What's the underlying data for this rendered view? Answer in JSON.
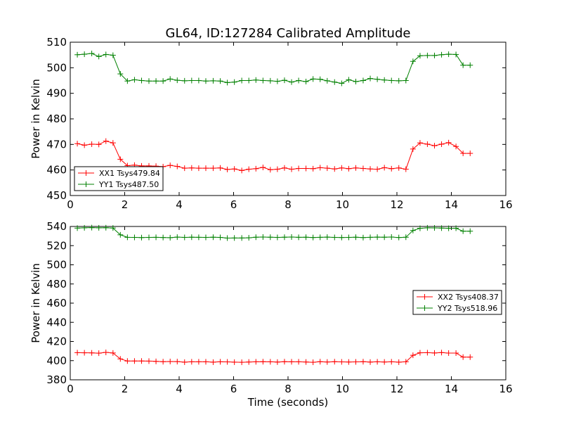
{
  "figure": {
    "title": "GL64, ID:127284 Calibrated Amplitude",
    "xlabel": "Time (seconds)"
  },
  "chart_data": [
    {
      "type": "line",
      "title": "GL64, ID:127284 Calibrated Amplitude",
      "xlabel": "",
      "ylabel": "Power in Kelvin",
      "xlim": [
        0,
        16
      ],
      "ylim": [
        450,
        510
      ],
      "xticks": [
        "0",
        "2",
        "4",
        "6",
        "8",
        "10",
        "12",
        "14",
        "16"
      ],
      "yticks": [
        "450",
        "460",
        "470",
        "480",
        "490",
        "500",
        "510"
      ],
      "legend_position": "lower-left",
      "grid": false,
      "x": [
        0.26,
        0.52,
        0.79,
        1.05,
        1.31,
        1.57,
        1.84,
        2.1,
        2.36,
        2.62,
        2.89,
        3.15,
        3.41,
        3.67,
        3.93,
        4.2,
        4.46,
        4.72,
        4.98,
        5.25,
        5.51,
        5.77,
        6.03,
        6.3,
        6.56,
        6.82,
        7.08,
        7.35,
        7.61,
        7.87,
        8.13,
        8.39,
        8.66,
        8.92,
        9.18,
        9.44,
        9.71,
        9.97,
        10.23,
        10.49,
        10.76,
        11.02,
        11.28,
        11.54,
        11.8,
        12.07,
        12.33,
        12.59,
        12.85,
        13.12,
        13.38,
        13.64,
        13.9,
        14.17,
        14.43,
        14.69
      ],
      "series": [
        {
          "name": "XX1 Tsys479.84",
          "color": "#ff0000",
          "values": [
            470.3,
            469.7,
            470.1,
            470.0,
            471.3,
            470.6,
            464.2,
            461.7,
            461.9,
            461.6,
            461.6,
            461.5,
            461.3,
            461.8,
            461.4,
            460.7,
            460.8,
            460.7,
            460.7,
            460.7,
            460.8,
            460.2,
            460.4,
            459.8,
            460.3,
            460.5,
            461.0,
            460.1,
            460.3,
            460.8,
            460.3,
            460.6,
            460.6,
            460.5,
            460.9,
            460.7,
            460.4,
            460.8,
            460.5,
            460.8,
            460.6,
            460.4,
            460.3,
            460.9,
            460.5,
            460.8,
            460.3,
            468.2,
            470.6,
            470.1,
            469.5,
            470.1,
            470.7,
            469.2,
            466.5,
            466.5
          ]
        },
        {
          "name": "YY1 Tsys487.50",
          "color": "#008000",
          "values": [
            505.1,
            505.3,
            505.6,
            504.4,
            505.2,
            504.9,
            497.6,
            494.8,
            495.3,
            495.0,
            494.8,
            494.8,
            494.8,
            495.6,
            495.1,
            494.9,
            495.0,
            495.0,
            494.8,
            494.9,
            494.8,
            494.2,
            494.4,
            495.0,
            495.0,
            495.2,
            495.0,
            494.9,
            494.7,
            495.1,
            494.4,
            495.0,
            494.6,
            495.6,
            495.5,
            494.9,
            494.4,
            493.9,
            495.3,
            494.6,
            495.0,
            495.8,
            495.5,
            495.2,
            495.0,
            494.9,
            495.0,
            502.5,
            504.7,
            504.8,
            504.8,
            505.1,
            505.3,
            505.2,
            501.0,
            501.0
          ]
        }
      ]
    },
    {
      "type": "line",
      "title": "",
      "xlabel": "Time (seconds)",
      "ylabel": "Power in Kelvin",
      "xlim": [
        0,
        16
      ],
      "ylim": [
        380,
        540
      ],
      "xticks": [
        "0",
        "2",
        "4",
        "6",
        "8",
        "10",
        "12",
        "14",
        "16"
      ],
      "yticks": [
        "380",
        "400",
        "420",
        "440",
        "460",
        "480",
        "500",
        "520",
        "540"
      ],
      "legend_position": "center-right",
      "grid": false,
      "x": [
        0.26,
        0.52,
        0.79,
        1.05,
        1.31,
        1.57,
        1.84,
        2.1,
        2.36,
        2.62,
        2.89,
        3.15,
        3.41,
        3.67,
        3.93,
        4.2,
        4.46,
        4.72,
        4.98,
        5.25,
        5.51,
        5.77,
        6.03,
        6.3,
        6.56,
        6.82,
        7.08,
        7.35,
        7.61,
        7.87,
        8.13,
        8.39,
        8.66,
        8.92,
        9.18,
        9.44,
        9.71,
        9.97,
        10.23,
        10.49,
        10.76,
        11.02,
        11.28,
        11.54,
        11.8,
        12.07,
        12.33,
        12.59,
        12.85,
        13.12,
        13.38,
        13.64,
        13.9,
        14.17,
        14.43,
        14.69
      ],
      "series": [
        {
          "name": "XX2 Tsys408.37",
          "color": "#ff0000",
          "values": [
            408.3,
            408.2,
            408.1,
            407.8,
            408.6,
            408.0,
            401.8,
            399.6,
            399.6,
            399.6,
            399.5,
            399.2,
            398.9,
            399.1,
            399.0,
            398.4,
            398.8,
            398.8,
            398.8,
            398.4,
            398.8,
            398.7,
            398.4,
            398.3,
            398.6,
            398.8,
            398.9,
            398.8,
            398.5,
            398.9,
            398.8,
            398.8,
            398.6,
            398.3,
            398.9,
            398.6,
            398.9,
            398.7,
            398.6,
            398.7,
            398.9,
            398.5,
            398.8,
            398.6,
            398.8,
            398.4,
            398.8,
            405.6,
            408.2,
            408.3,
            408.0,
            408.4,
            407.9,
            407.9,
            403.7,
            403.7
          ]
        },
        {
          "name": "YY2 Tsys518.96",
          "color": "#008000",
          "values": [
            538.3,
            538.6,
            538.8,
            538.6,
            538.7,
            538.4,
            531.3,
            528.7,
            528.6,
            528.4,
            528.6,
            528.7,
            528.5,
            528.3,
            528.9,
            528.6,
            528.8,
            528.7,
            528.6,
            528.8,
            528.6,
            527.9,
            528.0,
            528.0,
            528.2,
            528.8,
            529.0,
            528.8,
            528.6,
            528.8,
            529.0,
            528.7,
            528.8,
            528.5,
            528.7,
            528.9,
            528.6,
            528.5,
            528.6,
            528.8,
            528.4,
            528.7,
            528.9,
            528.8,
            529.0,
            528.5,
            528.8,
            535.8,
            538.1,
            538.6,
            538.5,
            538.3,
            538.1,
            538.2,
            535.1,
            535.1
          ]
        }
      ]
    }
  ]
}
